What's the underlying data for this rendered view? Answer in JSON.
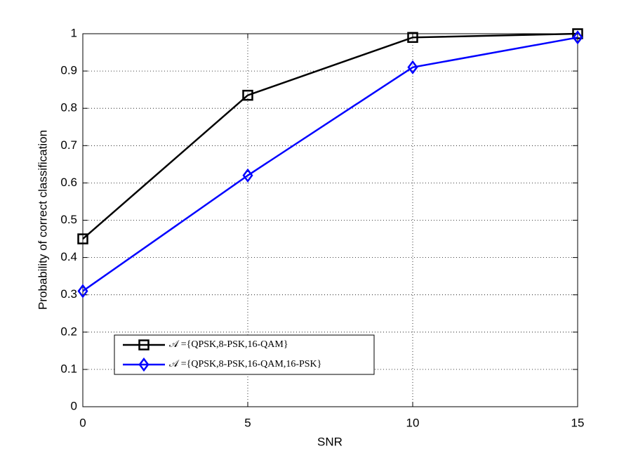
{
  "chart_data": {
    "type": "line",
    "xlabel": "SNR",
    "ylabel": "Probability of correct classification",
    "x": [
      0,
      5,
      10,
      15
    ],
    "series": [
      {
        "name": "𝒜 ={QPSK,8-PSK,16-QAM}",
        "color": "#000000",
        "marker": "square",
        "values": [
          0.45,
          0.835,
          0.99,
          1.0
        ]
      },
      {
        "name": "𝒜 ={QPSK,8-PSK,16-QAM,16-PSK}",
        "color": "#0000ff",
        "marker": "diamond",
        "values": [
          0.31,
          0.62,
          0.91,
          0.99
        ]
      }
    ],
    "xlim": [
      0,
      15
    ],
    "xticks": [
      0,
      5,
      10,
      15
    ],
    "ylim": [
      0,
      1
    ],
    "yticks": [
      0,
      0.1,
      0.2,
      0.3,
      0.4,
      0.5,
      0.6,
      0.7,
      0.8,
      0.9,
      1
    ],
    "grid": true,
    "legend": "lower left"
  }
}
